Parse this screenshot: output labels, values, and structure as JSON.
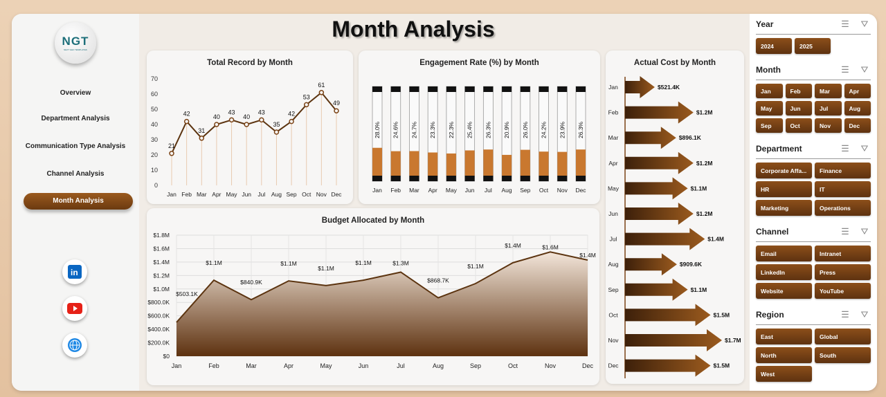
{
  "page_title": "Month Analysis",
  "logo": {
    "text": "NGT",
    "subtext": "NEXT GEN TEMPLATES"
  },
  "nav": [
    {
      "label": "Overview"
    },
    {
      "label": "Department Analysis"
    },
    {
      "label": "Communication Type Analysis"
    },
    {
      "label": "Channel Analysis"
    },
    {
      "label": "Month Analysis",
      "active": true
    }
  ],
  "social": [
    "linkedin-icon",
    "youtube-icon",
    "globe-icon"
  ],
  "colors": {
    "brand": "#7a4214",
    "fill": "#c9782f",
    "line": "#5c3410"
  },
  "chart_data": [
    {
      "type": "line",
      "title": "Total Record by Month",
      "categories": [
        "Jan",
        "Feb",
        "Mar",
        "Apr",
        "May",
        "Jun",
        "Jul",
        "Aug",
        "Sep",
        "Oct",
        "Nov",
        "Dec"
      ],
      "values": [
        21,
        42,
        31,
        40,
        43,
        40,
        43,
        35,
        42,
        53,
        61,
        49
      ],
      "ylim": [
        0,
        70
      ],
      "yticks": [
        0,
        10,
        20,
        30,
        40,
        50,
        60,
        70
      ]
    },
    {
      "type": "bar",
      "title": "Engagement Rate (%) by Month",
      "categories": [
        "Jan",
        "Feb",
        "Mar",
        "Apr",
        "May",
        "Jun",
        "Jul",
        "Aug",
        "Sep",
        "Oct",
        "Nov",
        "Dec"
      ],
      "values": [
        28.0,
        24.6,
        24.7,
        23.3,
        22.3,
        25.4,
        26.3,
        20.9,
        26.0,
        24.2,
        23.9,
        26.3
      ],
      "labels": [
        "28.0%",
        "24.6%",
        "24.7%",
        "23.3%",
        "22.3%",
        "25.4%",
        "26.3%",
        "20.9%",
        "26.0%",
        "24.2%",
        "23.9%",
        "26.3%"
      ],
      "ylim": [
        0,
        100
      ]
    },
    {
      "type": "area",
      "title": "Budget Allocated by Month",
      "categories": [
        "Jan",
        "Feb",
        "Mar",
        "Apr",
        "May",
        "Jun",
        "Jul",
        "Aug",
        "Sep",
        "Oct",
        "Nov",
        "Dec"
      ],
      "values": [
        503100,
        1130000,
        840900,
        1120000,
        1050000,
        1130000,
        1250000,
        868700,
        1080000,
        1390000,
        1550000,
        1430000
      ],
      "labels": [
        "$503.1K",
        "$1.1M",
        "$840.9K",
        "$1.1M",
        "$1.1M",
        "$1.1M",
        "$1.3M",
        "$868.7K",
        "$1.1M",
        "$1.4M",
        "$1.6M",
        "$1.4M"
      ],
      "ylim": [
        0,
        1800000
      ],
      "yticks": [
        "$0",
        "$200.0K",
        "$400.0K",
        "$600.0K",
        "$800.0K",
        "$1.0M",
        "$1.2M",
        "$1.4M",
        "$1.6M",
        "$1.8M"
      ]
    },
    {
      "type": "bar",
      "orientation": "horizontal",
      "title": "Actual Cost by Month",
      "categories": [
        "Jan",
        "Feb",
        "Mar",
        "Apr",
        "May",
        "Jun",
        "Jul",
        "Aug",
        "Sep",
        "Oct",
        "Nov",
        "Dec"
      ],
      "values": [
        521400,
        1200000,
        896100,
        1200000,
        1100000,
        1200000,
        1400000,
        909600,
        1100000,
        1500000,
        1700000,
        1500000
      ],
      "labels": [
        "$521.4K",
        "$1.2M",
        "$896.1K",
        "$1.2M",
        "$1.1M",
        "$1.2M",
        "$1.4M",
        "$909.6K",
        "$1.1M",
        "$1.5M",
        "$1.7M",
        "$1.5M"
      ]
    }
  ],
  "slicers": [
    {
      "name": "Year",
      "cols": 2,
      "items": [
        "2024",
        "2025"
      ]
    },
    {
      "name": "Month",
      "cols": 4,
      "items": [
        "Jan",
        "Feb",
        "Mar",
        "Apr",
        "May",
        "Jun",
        "Jul",
        "Aug",
        "Sep",
        "Oct",
        "Nov",
        "Dec"
      ]
    },
    {
      "name": "Department",
      "cols": 2,
      "items": [
        "Corporate Affa...",
        "Finance",
        "HR",
        "IT",
        "Marketing",
        "Operations"
      ]
    },
    {
      "name": "Channel",
      "cols": 2,
      "items": [
        "Email",
        "Intranet",
        "LinkedIn",
        "Press",
        "Website",
        "YouTube"
      ]
    },
    {
      "name": "Region",
      "cols": 2,
      "items": [
        "East",
        "Global",
        "North",
        "South",
        "West"
      ]
    }
  ]
}
